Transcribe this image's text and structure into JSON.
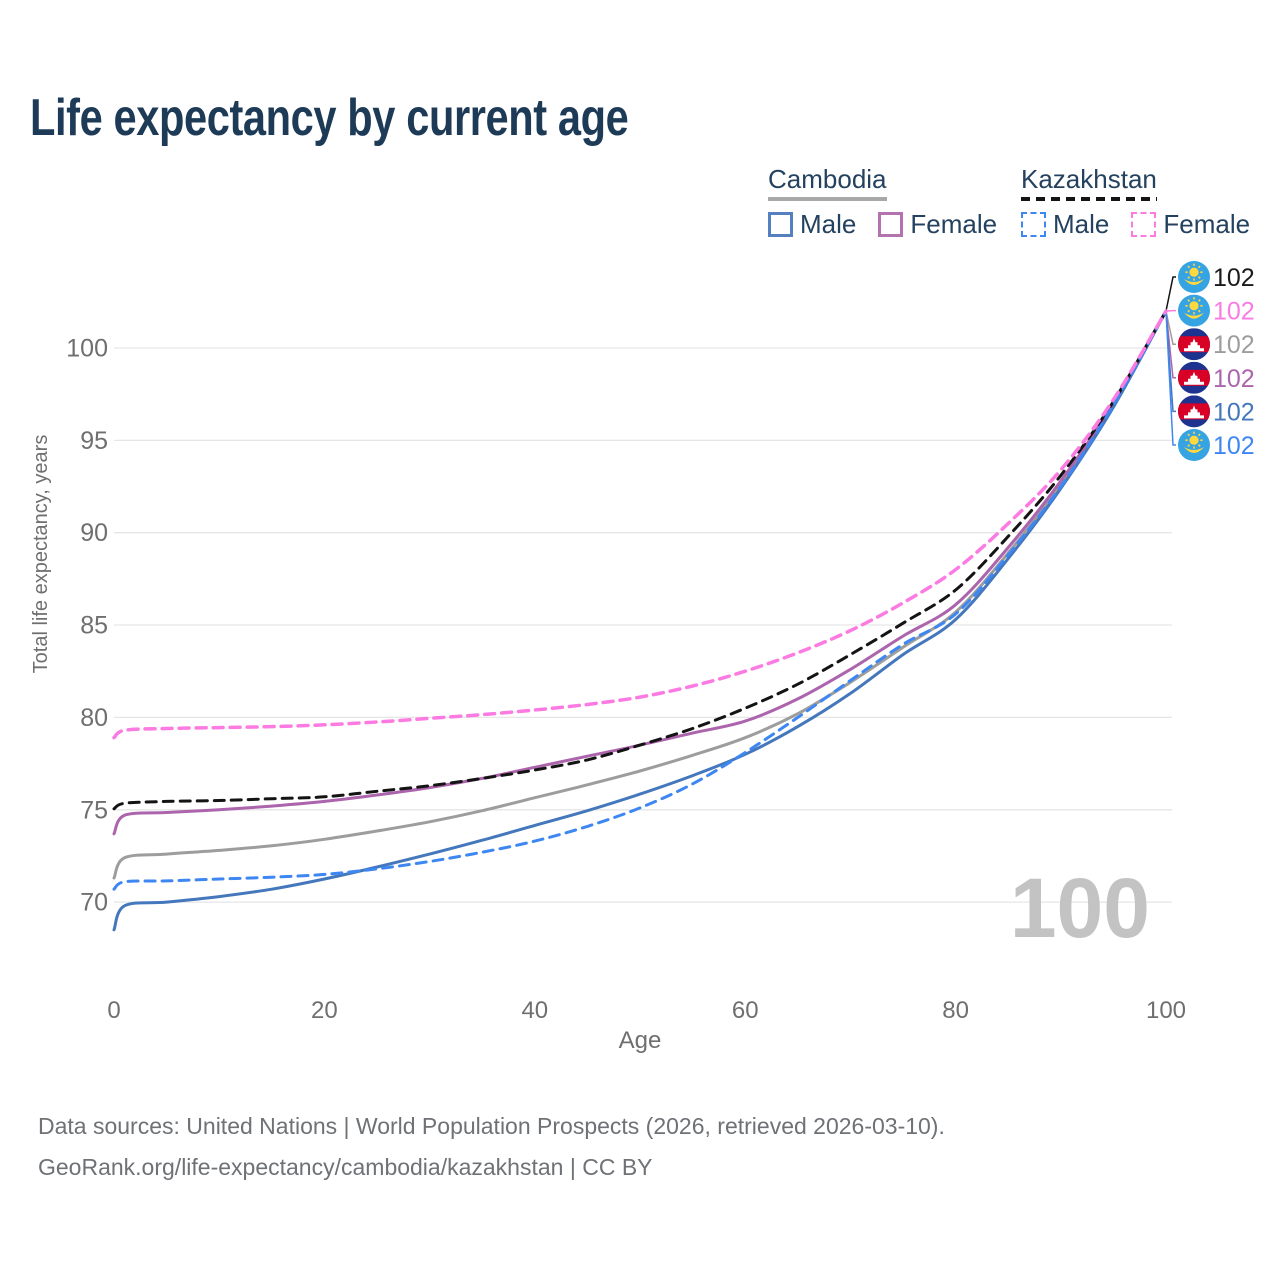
{
  "title": "Life expectancy by current age",
  "watermark": "100",
  "legend": {
    "cambodia": {
      "title": "Cambodia",
      "male_label": "Male",
      "female_label": "Female"
    },
    "kazakhstan": {
      "title": "Kazakhstan",
      "male_label": "Male",
      "female_label": "Female"
    }
  },
  "footer": {
    "line1": "Data sources: United Nations | World Population Prospects (2026, retrieved 2026-03-10).",
    "line2": "GeoRank.org/life-expectancy/cambodia/kazakhstan | CC BY"
  },
  "colors": {
    "title_text": "#1d3a57",
    "legend_text": "#24425f",
    "axis_text": "#6f6f6f",
    "gridline": "#e6e6e6",
    "watermark": "#c3c3c3",
    "footer_text": "#6e7276",
    "cambodia_male": "#4477bb",
    "cambodia_female": "#ac64ad",
    "cambodia_total": "#9d9d9d",
    "kazakhstan_male": "#3e87f2",
    "kazakhstan_female": "#fb7be2",
    "kazakhstan_total": "#141414",
    "kz_flag_blue": "#36a3e3",
    "kz_flag_yellow": "#ffd83d",
    "kh_flag_blue": "#1d338f",
    "kh_flag_red": "#d80027",
    "kh_flag_white": "#ffffff"
  },
  "chart_data": {
    "type": "line",
    "title": "Life expectancy by current age",
    "xlabel": "Age",
    "ylabel": "Total life expectancy, years",
    "xlim": [
      0,
      100
    ],
    "ylim": [
      68,
      102.5
    ],
    "x_ticks": [
      0,
      20,
      40,
      60,
      80,
      100
    ],
    "y_ticks": [
      70,
      75,
      80,
      85,
      90,
      95,
      100
    ],
    "grid": "horizontal",
    "legend_position": "top-right",
    "x": [
      0,
      1,
      5,
      10,
      15,
      20,
      25,
      30,
      35,
      40,
      45,
      50,
      55,
      60,
      65,
      70,
      75,
      80,
      85,
      90,
      95,
      100
    ],
    "series": [
      {
        "id": "cambodia-total",
        "name": "Cambodia",
        "country": "Cambodia",
        "sex": "Total",
        "style": "solid",
        "color": "#9d9d9d",
        "label_color": "#9d9d9d",
        "flag": "kh",
        "label_row": 2,
        "end_label": "102",
        "values": [
          71.3,
          72.4,
          72.6,
          72.8,
          73.05,
          73.4,
          73.85,
          74.35,
          74.95,
          75.65,
          76.35,
          77.1,
          77.95,
          78.9,
          80.2,
          81.9,
          83.8,
          85.7,
          88.9,
          92.6,
          96.9,
          102
        ]
      },
      {
        "id": "cambodia-female",
        "name": "Cambodia Female",
        "country": "Cambodia",
        "sex": "Female",
        "style": "solid",
        "color": "#ac64ad",
        "label_color": "#ac64ad",
        "flag": "kh",
        "label_row": 3,
        "end_label": "102",
        "values": [
          73.7,
          74.7,
          74.85,
          75.0,
          75.2,
          75.45,
          75.8,
          76.2,
          76.7,
          77.3,
          77.9,
          78.5,
          79.15,
          79.8,
          81.0,
          82.6,
          84.4,
          86.1,
          89.2,
          92.8,
          97.0,
          102
        ]
      },
      {
        "id": "cambodia-male",
        "name": "Cambodia Male",
        "country": "Cambodia",
        "sex": "Male",
        "style": "solid",
        "color": "#4477bb",
        "label_color": "#4477bb",
        "flag": "kh",
        "label_row": 4,
        "end_label": "102",
        "values": [
          68.5,
          69.8,
          70.0,
          70.3,
          70.7,
          71.25,
          71.9,
          72.6,
          73.35,
          74.15,
          74.95,
          75.85,
          76.85,
          78.0,
          79.5,
          81.3,
          83.4,
          85.3,
          88.6,
          92.4,
          96.8,
          102
        ]
      },
      {
        "id": "kazakhstan-total",
        "name": "Kazakhstan",
        "country": "Kazakhstan",
        "sex": "Total",
        "style": "dashed",
        "color": "#141414",
        "label_color": "#1a1a1a",
        "flag": "kz",
        "label_row": 0,
        "end_label": "102",
        "values": [
          75.05,
          75.35,
          75.45,
          75.5,
          75.6,
          75.7,
          76.0,
          76.3,
          76.7,
          77.15,
          77.7,
          78.5,
          79.4,
          80.5,
          81.8,
          83.4,
          85.1,
          86.9,
          89.8,
          93.1,
          97.1,
          102
        ]
      },
      {
        "id": "kazakhstan-male",
        "name": "Kazakhstan Male",
        "country": "Kazakhstan",
        "sex": "Male",
        "style": "dashed",
        "color": "#3e87f2",
        "label_color": "#3e87f2",
        "flag": "kz",
        "label_row": 5,
        "end_label": "102",
        "values": [
          70.7,
          71.1,
          71.15,
          71.25,
          71.35,
          71.5,
          71.8,
          72.2,
          72.7,
          73.3,
          74.1,
          75.1,
          76.4,
          78.1,
          80.0,
          82.0,
          83.95,
          85.6,
          88.8,
          92.5,
          96.9,
          102
        ]
      },
      {
        "id": "kazakhstan-female",
        "name": "Kazakhstan Female",
        "country": "Kazakhstan",
        "sex": "Female",
        "style": "dashed",
        "color": "#fb7be2",
        "label_color": "#fb7be2",
        "flag": "kz",
        "label_row": 1,
        "end_label": "102",
        "values": [
          78.9,
          79.3,
          79.4,
          79.45,
          79.5,
          79.6,
          79.75,
          79.95,
          80.15,
          80.4,
          80.7,
          81.1,
          81.7,
          82.5,
          83.5,
          84.7,
          86.2,
          88.0,
          90.5,
          93.4,
          97.2,
          102
        ]
      }
    ]
  }
}
